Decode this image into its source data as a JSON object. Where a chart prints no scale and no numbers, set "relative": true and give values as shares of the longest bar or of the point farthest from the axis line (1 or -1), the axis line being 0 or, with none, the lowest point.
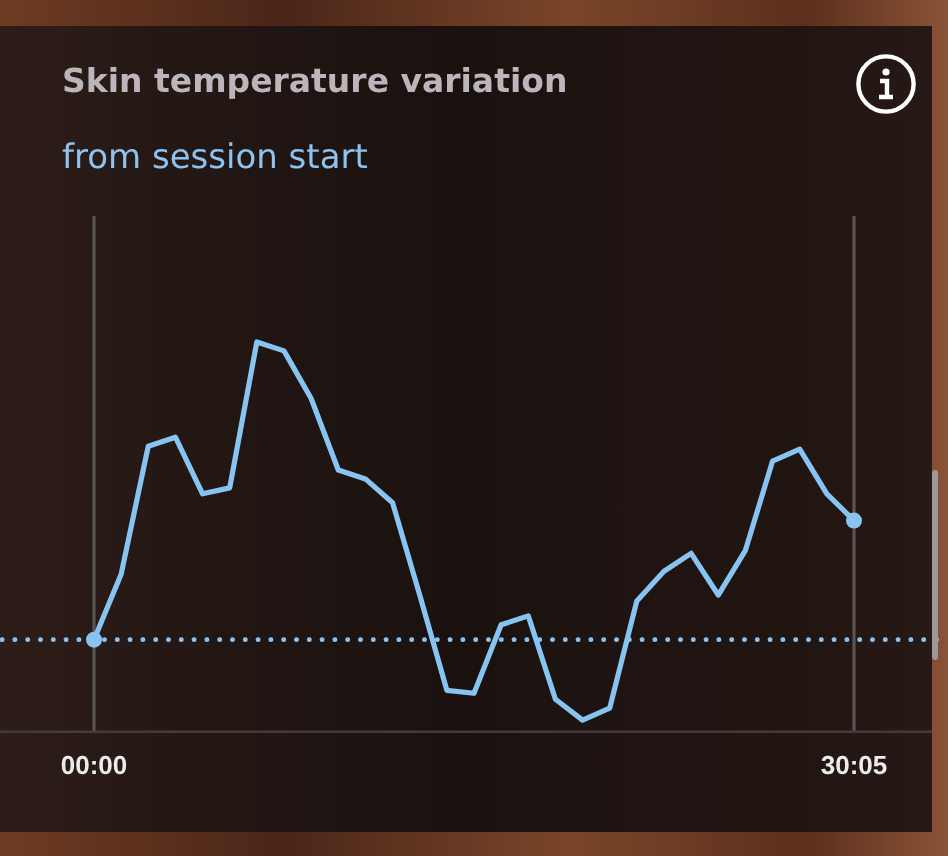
{
  "chart_data": {
    "type": "line",
    "title": "Skin temperature variation",
    "subtitle": "from session start",
    "categories": [
      "00:00",
      null,
      null,
      null,
      null,
      null,
      null,
      null,
      null,
      null,
      null,
      null,
      null,
      null,
      null,
      null,
      null,
      null,
      null,
      null,
      null,
      null,
      null,
      null,
      null,
      null,
      null,
      null,
      "30:05"
    ],
    "series": [
      {
        "color": "#88c4f2",
        "values": [
          0,
          0.22,
          0.65,
          0.68,
          0.49,
          0.51,
          1.0,
          0.97,
          0.81,
          0.57,
          0.54,
          0.46,
          0.15,
          -0.17,
          -0.18,
          0.05,
          0.08,
          -0.2,
          -0.27,
          -0.23,
          0.13,
          0.23,
          0.29,
          0.15,
          0.3,
          0.6,
          0.64,
          0.49,
          0.4
        ]
      }
    ],
    "relative": true,
    "ref_lines": [
      {
        "axis": "y",
        "value": 0,
        "color": "#88c4f2",
        "line_style": "dotted"
      },
      {
        "axis": "x",
        "value": "00:00",
        "color": "#5a5453"
      },
      {
        "axis": "x",
        "value": "30:05",
        "color": "#5a5453"
      }
    ]
  }
}
